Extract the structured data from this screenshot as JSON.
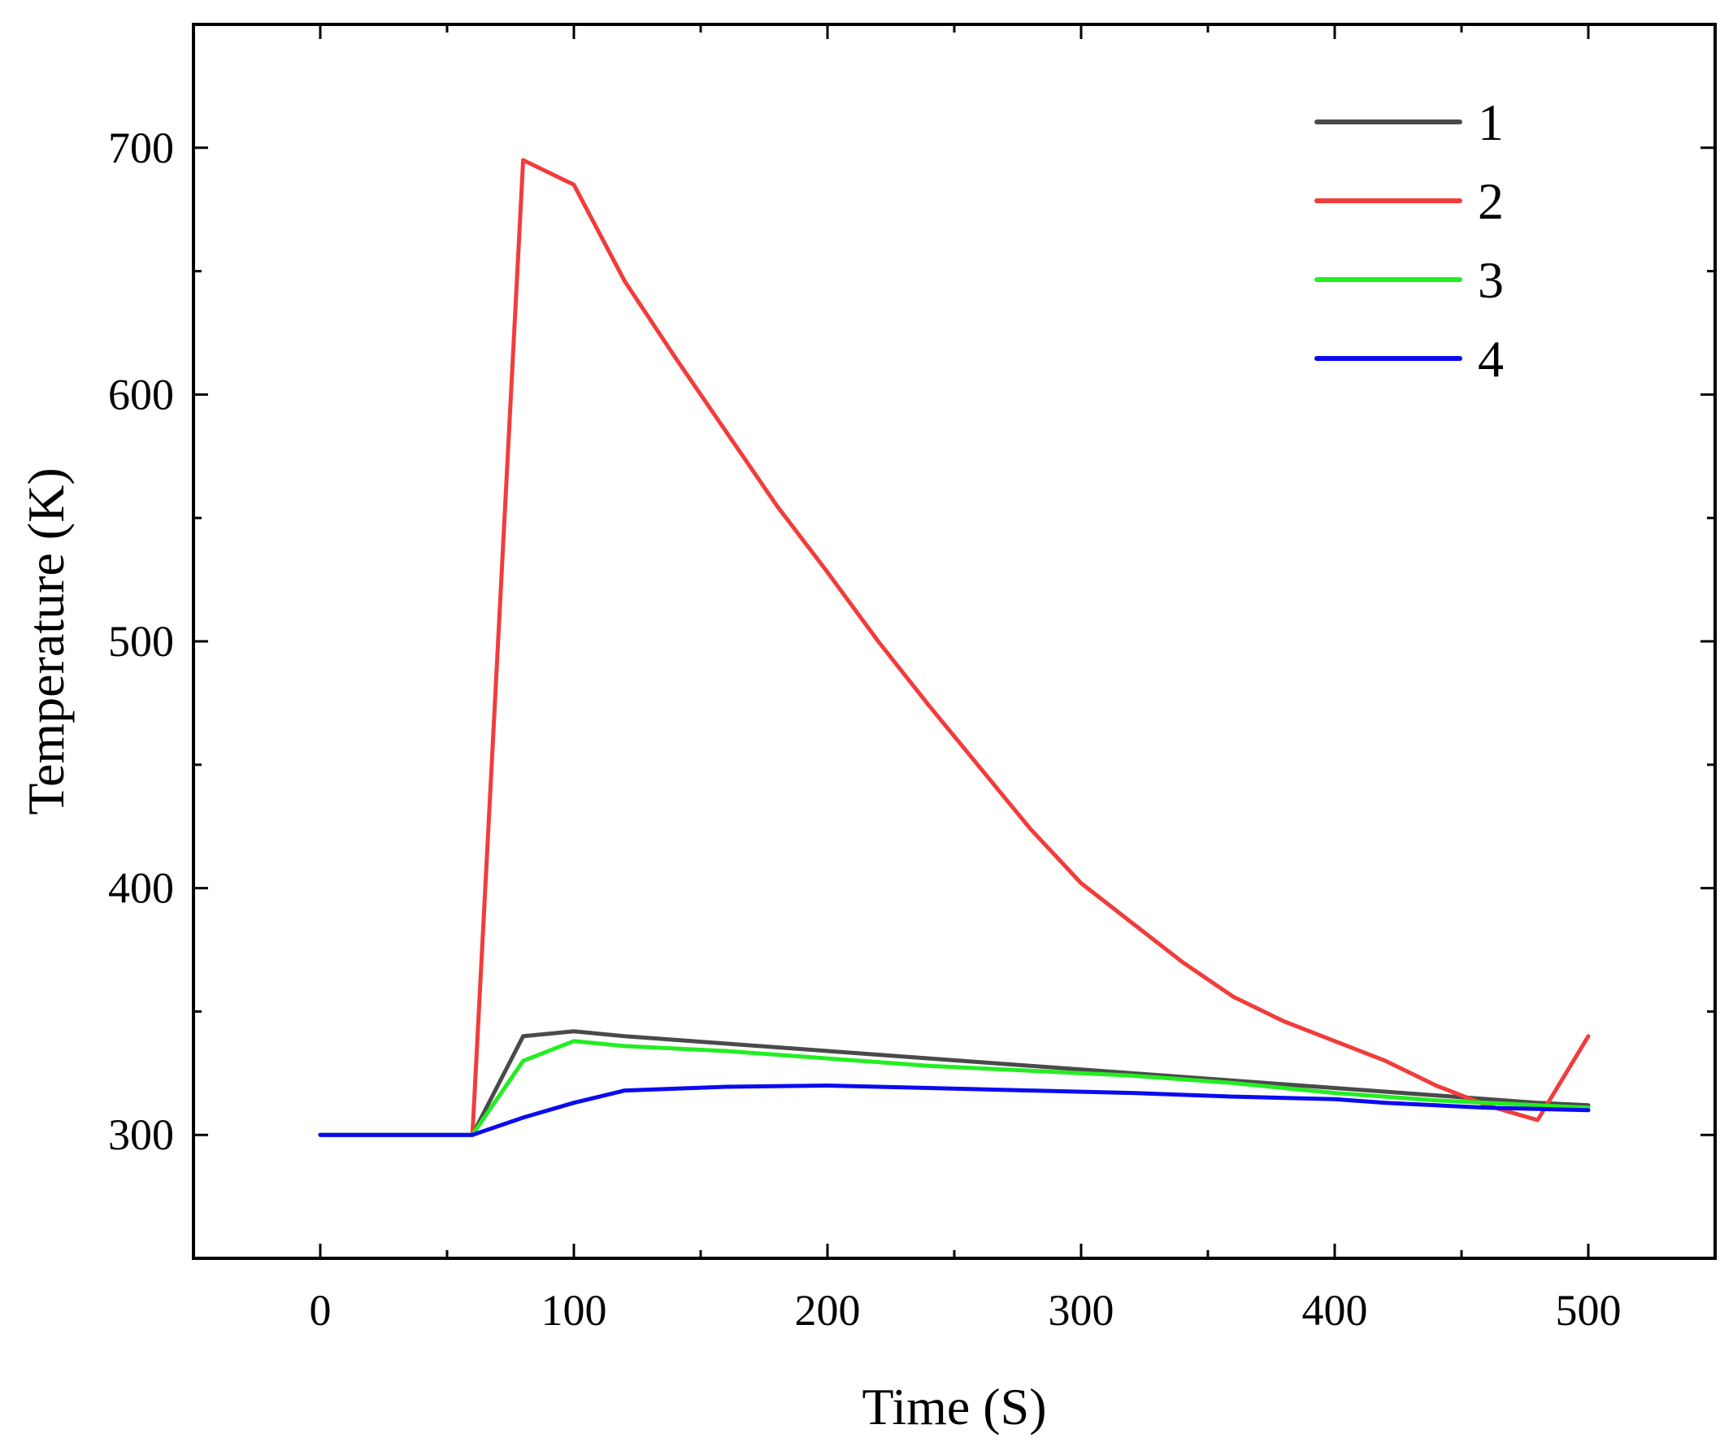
{
  "chart_data": {
    "type": "line",
    "title": "",
    "xlabel": "Time (S)",
    "ylabel": "Temperature (K)",
    "xlim": [
      -50,
      550
    ],
    "ylim": [
      250,
      750
    ],
    "xticks": [
      0,
      100,
      200,
      300,
      400,
      500
    ],
    "xtick_labels": [
      "0",
      "100",
      "200",
      "300",
      "400",
      "500"
    ],
    "yticks": [
      300,
      400,
      500,
      600,
      700
    ],
    "ytick_labels": [
      "300",
      "400",
      "500",
      "600",
      "700"
    ],
    "grid": false,
    "legend_position": "top-right",
    "series": [
      {
        "name": "1",
        "color": "#4a4a4a",
        "x": [
          0,
          60,
          80,
          100,
          120,
          160,
          200,
          240,
          280,
          320,
          360,
          400,
          440,
          480,
          500
        ],
        "y": [
          300,
          300,
          340,
          342,
          340,
          337,
          334,
          331,
          328,
          325,
          322,
          319,
          316,
          313,
          312
        ]
      },
      {
        "name": "2",
        "color": "#f23c3c",
        "x": [
          0,
          60,
          80,
          100,
          120,
          140,
          160,
          180,
          200,
          220,
          240,
          260,
          280,
          300,
          320,
          340,
          360,
          380,
          400,
          420,
          440,
          460,
          480,
          500
        ],
        "y": [
          300,
          300,
          695,
          685,
          646,
          615,
          585,
          555,
          528,
          500,
          474,
          449,
          424,
          402,
          386,
          370,
          356,
          346,
          338,
          330,
          320,
          312,
          306,
          340
        ]
      },
      {
        "name": "3",
        "color": "#22ee22",
        "x": [
          0,
          60,
          80,
          100,
          120,
          160,
          200,
          240,
          280,
          320,
          360,
          400,
          440,
          480,
          500
        ],
        "y": [
          300,
          300,
          330,
          338,
          336,
          334,
          331,
          328,
          326,
          324,
          321,
          317,
          314,
          312,
          311
        ]
      },
      {
        "name": "4",
        "color": "#0b0bf0",
        "x": [
          0,
          60,
          80,
          100,
          120,
          160,
          200,
          240,
          280,
          320,
          360,
          400,
          420,
          440,
          460,
          480,
          500
        ],
        "y": [
          300,
          300,
          307,
          313,
          318,
          319.5,
          320,
          319,
          318,
          317,
          315.5,
          314.5,
          313,
          312,
          311,
          310.5,
          310
        ]
      }
    ]
  }
}
